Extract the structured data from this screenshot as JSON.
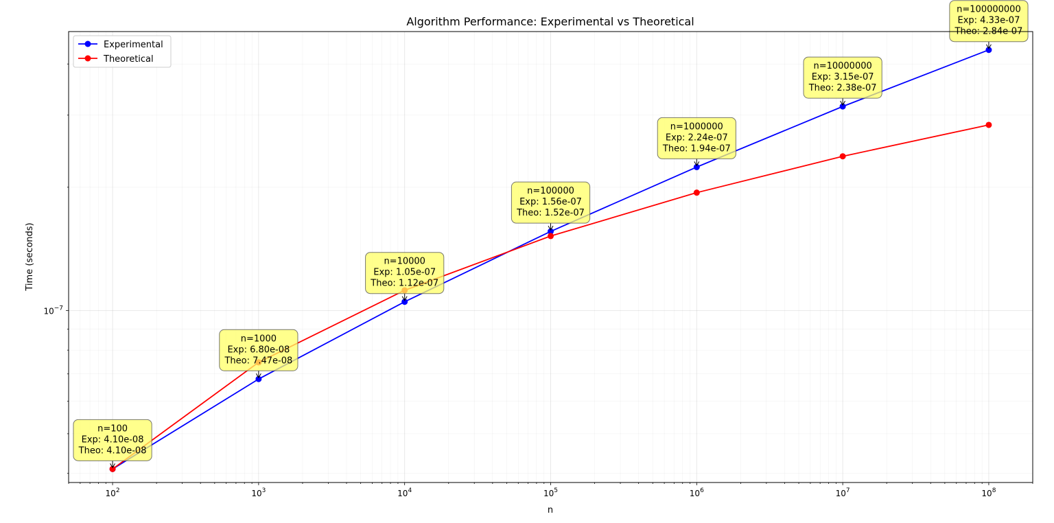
{
  "chart_data": {
    "type": "line",
    "title": "Algorithm Performance: Experimental vs Theoretical",
    "xlabel": "n",
    "ylabel": "Time (seconds)",
    "x_scale": "log",
    "y_scale": "log",
    "xlim": [
      50,
      200000000
    ],
    "ylim": [
      3.8e-08,
      4.8e-07
    ],
    "grid": true,
    "legend_position": "top-left",
    "x": [
      100,
      1000,
      10000,
      100000,
      1000000,
      10000000,
      100000000
    ],
    "x_ticks": [
      {
        "base": "10",
        "exp": "2"
      },
      {
        "base": "10",
        "exp": "3"
      },
      {
        "base": "10",
        "exp": "4"
      },
      {
        "base": "10",
        "exp": "5"
      },
      {
        "base": "10",
        "exp": "6"
      },
      {
        "base": "10",
        "exp": "7"
      },
      {
        "base": "10",
        "exp": "8"
      }
    ],
    "y_ticks": [
      {
        "value": 1e-07,
        "base": "10",
        "exp": "−7"
      }
    ],
    "series": [
      {
        "name": "Experimental",
        "color": "#0000ff",
        "values": [
          4.1e-08,
          6.8e-08,
          1.05e-07,
          1.56e-07,
          2.24e-07,
          3.15e-07,
          4.33e-07
        ]
      },
      {
        "name": "Theoretical",
        "color": "#ff0000",
        "values": [
          4.1e-08,
          7.47e-08,
          1.12e-07,
          1.52e-07,
          1.94e-07,
          2.38e-07,
          2.84e-07
        ]
      }
    ],
    "annotations": [
      {
        "lines": [
          "n=100",
          "Exp: 4.10e-08",
          "Theo: 4.10e-08"
        ]
      },
      {
        "lines": [
          "n=1000",
          "Exp: 6.80e-08",
          "Theo: 7.47e-08"
        ]
      },
      {
        "lines": [
          "n=10000",
          "Exp: 1.05e-07",
          "Theo: 1.12e-07"
        ]
      },
      {
        "lines": [
          "n=100000",
          "Exp: 1.56e-07",
          "Theo: 1.52e-07"
        ]
      },
      {
        "lines": [
          "n=1000000",
          "Exp: 2.24e-07",
          "Theo: 1.94e-07"
        ]
      },
      {
        "lines": [
          "n=10000000",
          "Exp: 3.15e-07",
          "Theo: 2.38e-07"
        ]
      },
      {
        "lines": [
          "n=100000000",
          "Exp: 4.33e-07",
          "Theo: 2.84e-07"
        ]
      }
    ],
    "annotation_color": "#ffff66"
  }
}
